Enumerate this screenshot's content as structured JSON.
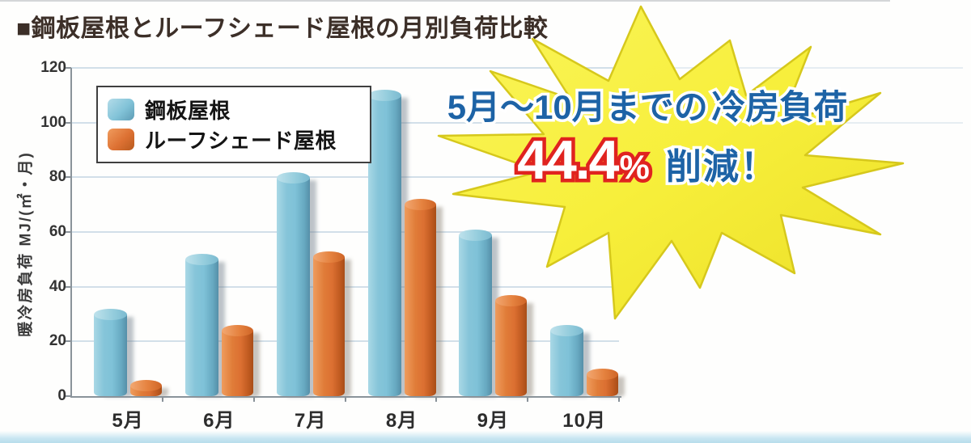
{
  "title": "■鋼板屋根とルーフシェード屋根の月別負荷比較",
  "chart_data": {
    "type": "bar",
    "categories": [
      "5月",
      "6月",
      "7月",
      "8月",
      "9月",
      "10月"
    ],
    "series": [
      {
        "name": "鋼板屋根",
        "color": "#7fc2d8",
        "values": [
          32,
          52,
          82,
          112,
          61,
          26
        ]
      },
      {
        "name": "ルーフシェード屋根",
        "color": "#dc7032",
        "values": [
          6,
          26,
          53,
          72,
          37,
          10
        ]
      }
    ],
    "title": "鋼板屋根とルーフシェード屋根の月別負荷比較",
    "xlabel": "",
    "ylabel": "暖冷房負荷 MJ/(㎡・月)",
    "ylim": [
      0,
      120
    ],
    "yticks": [
      0,
      20,
      40,
      60,
      80,
      100,
      120
    ],
    "grid": true,
    "legend_position": "top-left"
  },
  "callout": {
    "line1": "5月～10月までの",
    "line2": "冷房負荷",
    "value": "44.4",
    "unit": "%",
    "suffix": "削減！",
    "star_color": "#f7ef3b",
    "star_edge_color": "#d6c81c",
    "text_color": "#1d63a6",
    "value_fill_color": "#ffffff",
    "value_outline_color": "#e0231f"
  }
}
